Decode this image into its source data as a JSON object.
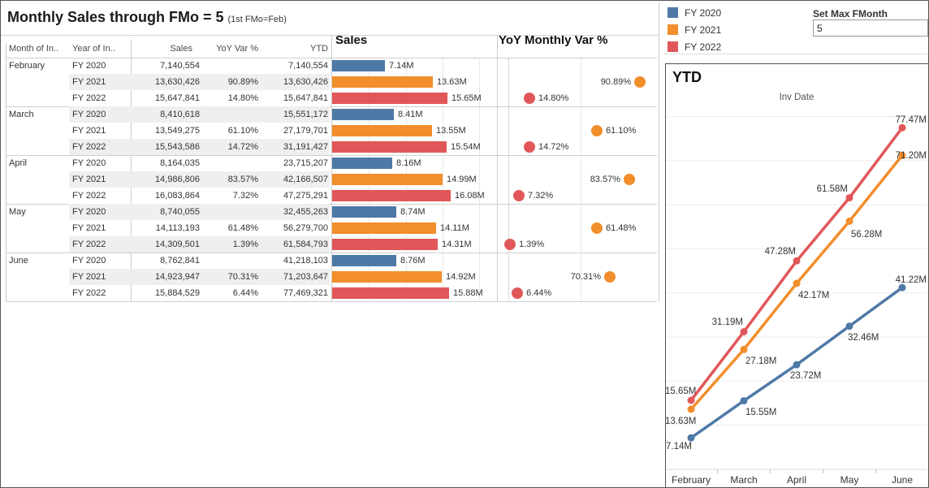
{
  "title": {
    "main": "Monthly Sales through FMo = 5",
    "sub": "(1st FMo=Feb)"
  },
  "colors": {
    "FY 2020": "#4e79a7",
    "FY 2021": "#f28e2b",
    "FY 2022": "#e15759"
  },
  "legend": {
    "items": [
      "FY 2020",
      "FY 2021",
      "FY 2022"
    ]
  },
  "param": {
    "label": "Set Max FMonth",
    "value": "5"
  },
  "table": {
    "headers": [
      "Month of In..",
      "Year of In..",
      "Sales",
      "YoY Var %",
      "YTD"
    ],
    "rows": [
      {
        "month": "February",
        "fy": "FY 2020",
        "sales": "7,140,554",
        "yoy": "",
        "ytd": "7,140,554"
      },
      {
        "month": "",
        "fy": "FY 2021",
        "sales": "13,630,426",
        "yoy": "90.89%",
        "ytd": "13,630,426"
      },
      {
        "month": "",
        "fy": "FY 2022",
        "sales": "15,647,841",
        "yoy": "14.80%",
        "ytd": "15,647,841"
      },
      {
        "month": "March",
        "fy": "FY 2020",
        "sales": "8,410,618",
        "yoy": "",
        "ytd": "15,551,172"
      },
      {
        "month": "",
        "fy": "FY 2021",
        "sales": "13,549,275",
        "yoy": "61.10%",
        "ytd": "27,179,701"
      },
      {
        "month": "",
        "fy": "FY 2022",
        "sales": "15,543,586",
        "yoy": "14.72%",
        "ytd": "31,191,427"
      },
      {
        "month": "April",
        "fy": "FY 2020",
        "sales": "8,164,035",
        "yoy": "",
        "ytd": "23,715,207"
      },
      {
        "month": "",
        "fy": "FY 2021",
        "sales": "14,986,806",
        "yoy": "83.57%",
        "ytd": "42,166,507"
      },
      {
        "month": "",
        "fy": "FY 2022",
        "sales": "16,083,864",
        "yoy": "7.32%",
        "ytd": "47,275,291"
      },
      {
        "month": "May",
        "fy": "FY 2020",
        "sales": "8,740,055",
        "yoy": "",
        "ytd": "32,455,263"
      },
      {
        "month": "",
        "fy": "FY 2021",
        "sales": "14,113,193",
        "yoy": "61.48%",
        "ytd": "56,279,700"
      },
      {
        "month": "",
        "fy": "FY 2022",
        "sales": "14,309,501",
        "yoy": "1.39%",
        "ytd": "61,584,793"
      },
      {
        "month": "June",
        "fy": "FY 2020",
        "sales": "8,762,841",
        "yoy": "",
        "ytd": "41,218,103"
      },
      {
        "month": "",
        "fy": "FY 2021",
        "sales": "14,923,947",
        "yoy": "70.31%",
        "ytd": "71,203,647"
      },
      {
        "month": "",
        "fy": "FY 2022",
        "sales": "15,884,529",
        "yoy": "6.44%",
        "ytd": "77,469,321"
      }
    ]
  },
  "chart_data": [
    {
      "type": "bar",
      "title": "Sales",
      "orientation": "horizontal",
      "unit": "M",
      "xlim": [
        0,
        22.3
      ],
      "gridlines": [
        5,
        10,
        15,
        20
      ],
      "bars": [
        {
          "month": "February",
          "fy": "FY 2020",
          "value": 7.14,
          "label": "7.14M"
        },
        {
          "month": "February",
          "fy": "FY 2021",
          "value": 13.63,
          "label": "13.63M"
        },
        {
          "month": "February",
          "fy": "FY 2022",
          "value": 15.65,
          "label": "15.65M"
        },
        {
          "month": "March",
          "fy": "FY 2020",
          "value": 8.41,
          "label": "8.41M"
        },
        {
          "month": "March",
          "fy": "FY 2021",
          "value": 13.55,
          "label": "13.55M"
        },
        {
          "month": "March",
          "fy": "FY 2022",
          "value": 15.54,
          "label": "15.54M"
        },
        {
          "month": "April",
          "fy": "FY 2020",
          "value": 8.16,
          "label": "8.16M"
        },
        {
          "month": "April",
          "fy": "FY 2021",
          "value": 14.99,
          "label": "14.99M"
        },
        {
          "month": "April",
          "fy": "FY 2022",
          "value": 16.08,
          "label": "16.08M"
        },
        {
          "month": "May",
          "fy": "FY 2020",
          "value": 8.74,
          "label": "8.74M"
        },
        {
          "month": "May",
          "fy": "FY 2021",
          "value": 14.11,
          "label": "14.11M"
        },
        {
          "month": "May",
          "fy": "FY 2022",
          "value": 14.31,
          "label": "14.31M"
        },
        {
          "month": "June",
          "fy": "FY 2020",
          "value": 8.76,
          "label": "8.76M"
        },
        {
          "month": "June",
          "fy": "FY 2021",
          "value": 14.92,
          "label": "14.92M"
        },
        {
          "month": "June",
          "fy": "FY 2022",
          "value": 15.88,
          "label": "15.88M"
        }
      ]
    },
    {
      "type": "scatter",
      "title": "YoY Monthly Var %",
      "unit": "%",
      "xlim": [
        0,
        103
      ],
      "gridlines": [
        50
      ],
      "zero_line": 0,
      "points": [
        {
          "month": "February",
          "fy": "FY 2021",
          "value": 90.89,
          "label": "90.89%",
          "label_side": "left"
        },
        {
          "month": "February",
          "fy": "FY 2022",
          "value": 14.8,
          "label": "14.80%",
          "label_side": "right"
        },
        {
          "month": "March",
          "fy": "FY 2021",
          "value": 61.1,
          "label": "61.10%",
          "label_side": "right"
        },
        {
          "month": "March",
          "fy": "FY 2022",
          "value": 14.72,
          "label": "14.72%",
          "label_side": "right"
        },
        {
          "month": "April",
          "fy": "FY 2021",
          "value": 83.57,
          "label": "83.57%",
          "label_side": "left"
        },
        {
          "month": "April",
          "fy": "FY 2022",
          "value": 7.32,
          "label": "7.32%",
          "label_side": "right"
        },
        {
          "month": "May",
          "fy": "FY 2021",
          "value": 61.48,
          "label": "61.48%",
          "label_side": "right"
        },
        {
          "month": "May",
          "fy": "FY 2022",
          "value": 1.39,
          "label": "1.39%",
          "label_side": "right"
        },
        {
          "month": "June",
          "fy": "FY 2021",
          "value": 70.31,
          "label": "70.31%",
          "label_side": "left"
        },
        {
          "month": "June",
          "fy": "FY 2022",
          "value": 6.44,
          "label": "6.44%",
          "label_side": "right"
        }
      ]
    },
    {
      "type": "line",
      "title": "YTD",
      "xlabel": "Inv Date",
      "categories": [
        "February",
        "March",
        "April",
        "May",
        "June"
      ],
      "ylim": [
        0,
        80
      ],
      "grid_step": 10,
      "unit": "M",
      "series": [
        {
          "name": "FY 2020",
          "values": [
            7.14,
            15.55,
            23.72,
            32.46,
            41.22
          ],
          "labels": [
            "7.14M",
            "15.55M",
            "23.72M",
            "32.46M",
            "41.22M"
          ]
        },
        {
          "name": "FY 2021",
          "values": [
            13.63,
            27.18,
            42.17,
            56.28,
            71.2
          ],
          "labels": [
            "13.63M",
            "27.18M",
            "42.17M",
            "56.28M",
            "71.20M"
          ]
        },
        {
          "name": "FY 2022",
          "values": [
            15.65,
            31.19,
            47.28,
            61.58,
            77.47
          ],
          "labels": [
            "15.65M",
            "31.19M",
            "47.28M",
            "61.58M",
            "77.47M"
          ]
        }
      ]
    }
  ]
}
